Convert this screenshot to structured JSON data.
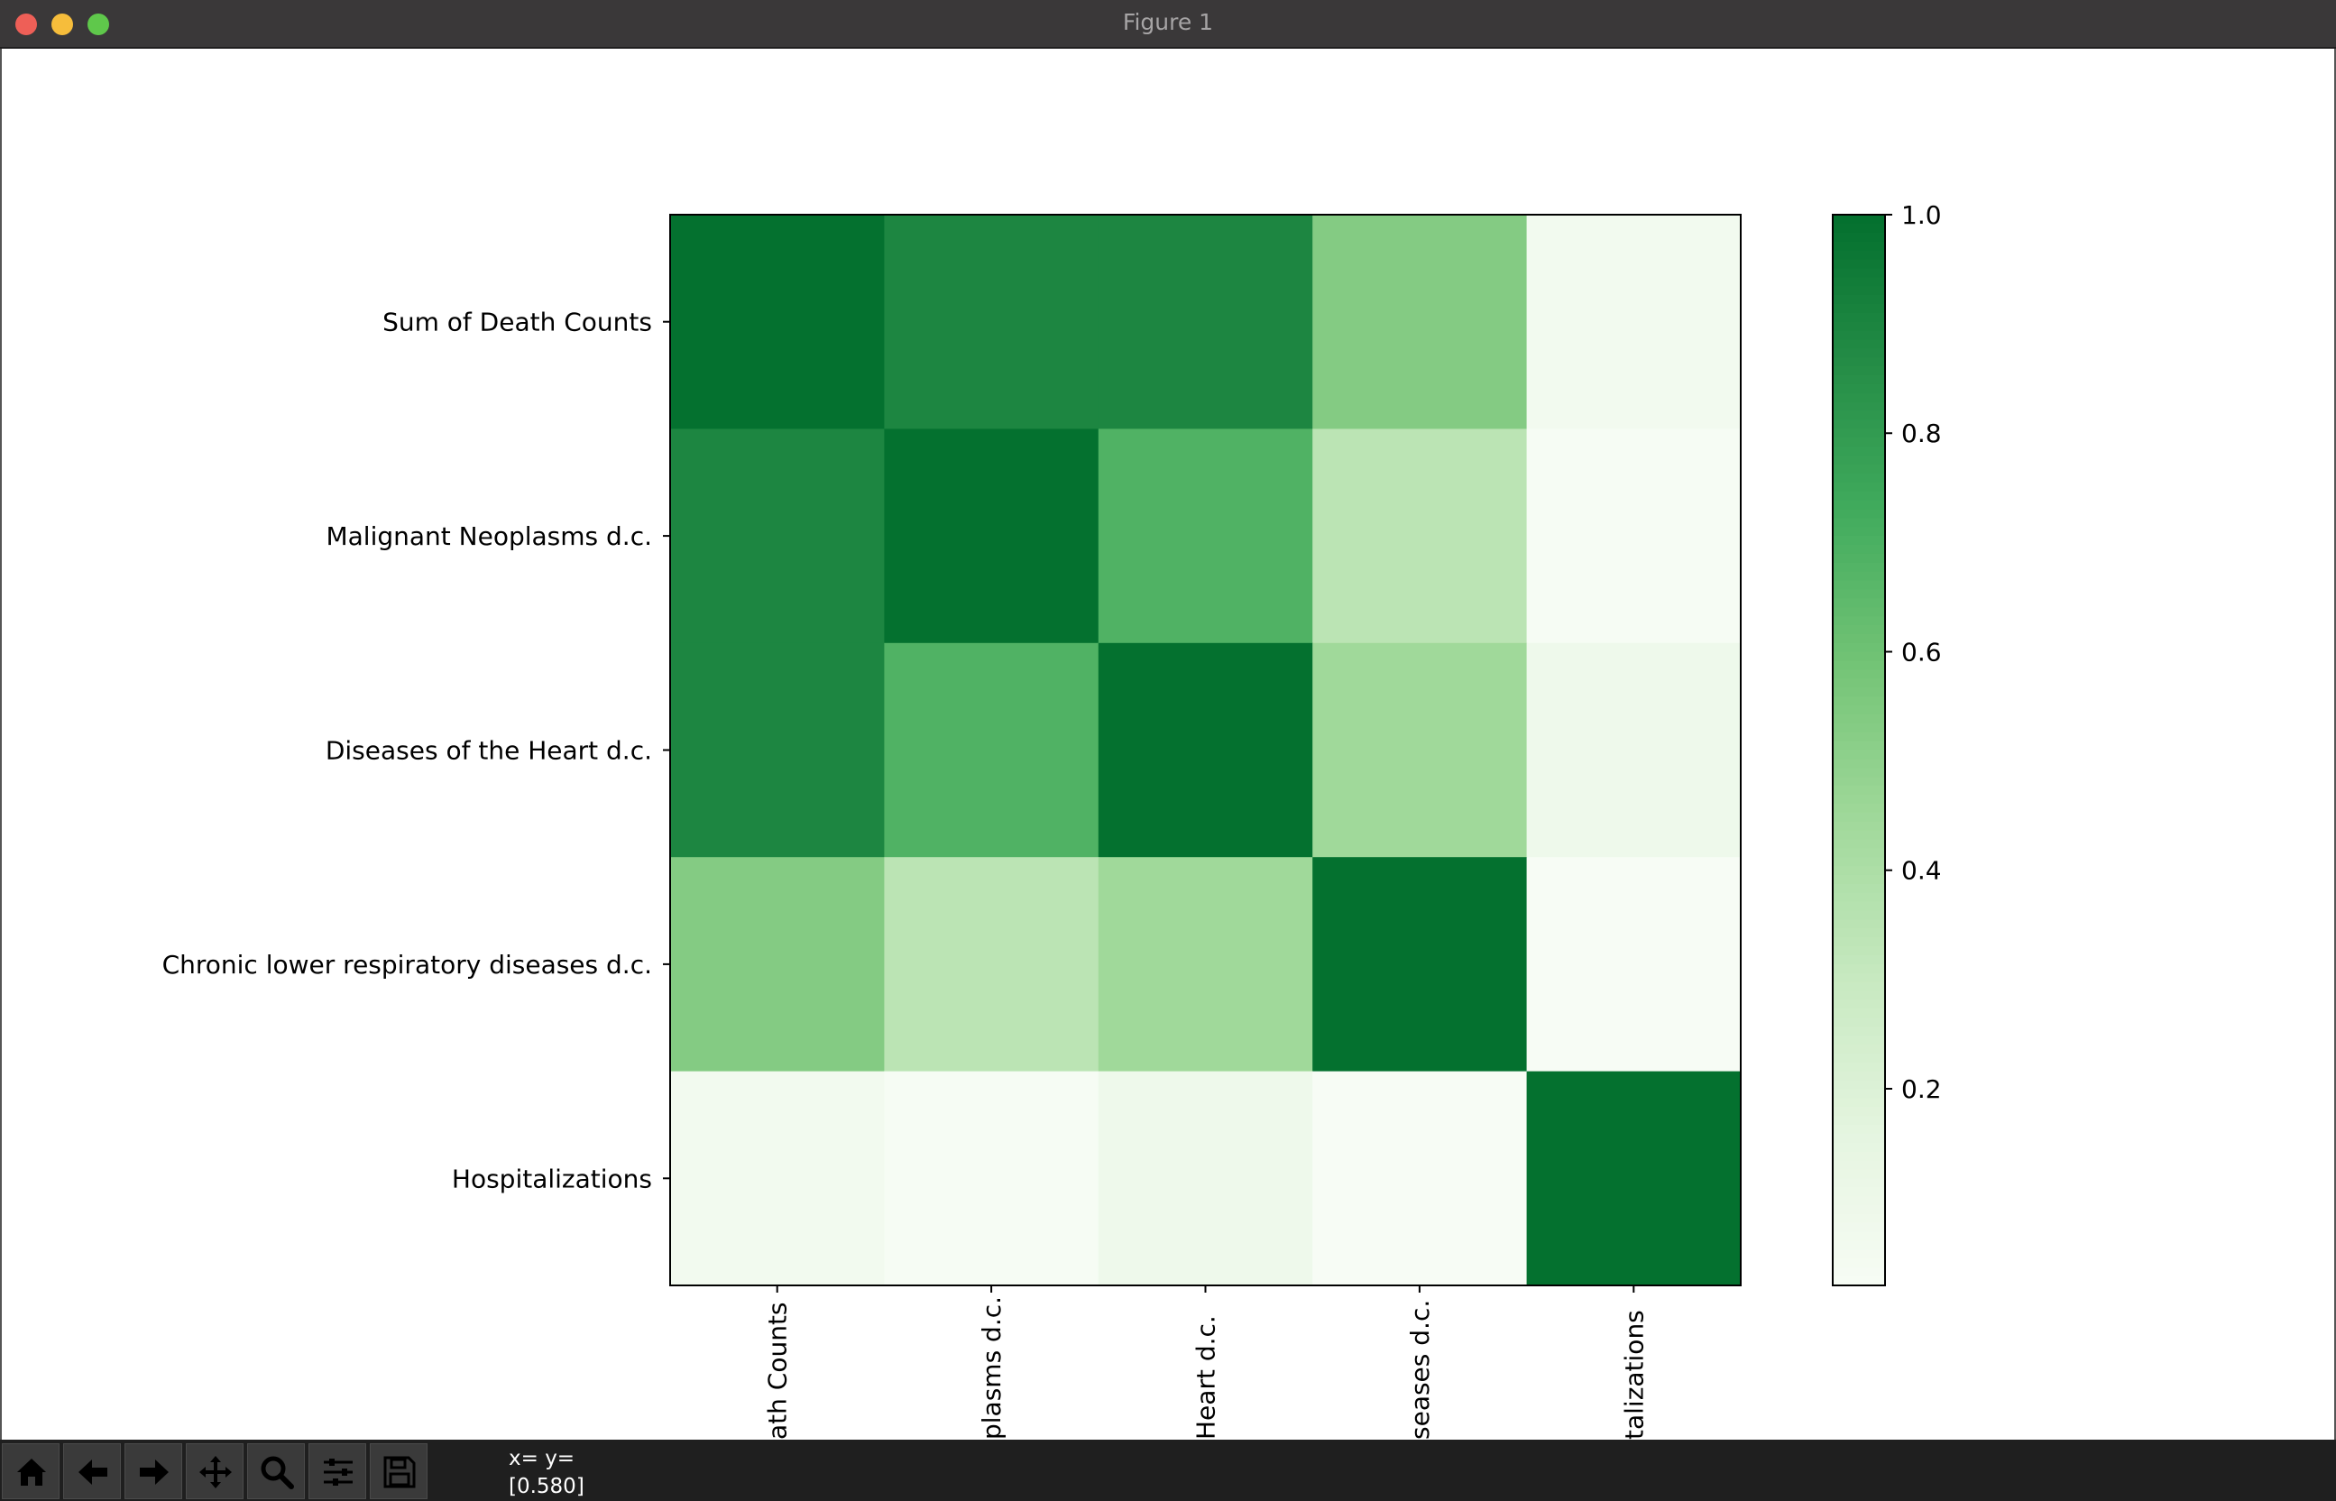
{
  "window": {
    "title": "Figure 1"
  },
  "toolbar": {
    "buttons": [
      {
        "name": "home-button",
        "icon": "home-icon"
      },
      {
        "name": "back-button",
        "icon": "arrow-left-icon"
      },
      {
        "name": "forward-button",
        "icon": "arrow-right-icon"
      },
      {
        "name": "pan-button",
        "icon": "move-icon"
      },
      {
        "name": "zoom-button",
        "icon": "magnifier-icon"
      },
      {
        "name": "configure-subplots-button",
        "icon": "sliders-icon"
      },
      {
        "name": "save-button",
        "icon": "floppy-disk-icon"
      }
    ],
    "coords_line1": "x= y=",
    "coords_line2": "[0.580]"
  },
  "chart_data": {
    "type": "heatmap",
    "title": "",
    "row_labels": [
      "Sum of Death Counts",
      "Malignant Neoplasms d.c.",
      "Diseases of the Heart d.c.",
      "Chronic lower respiratory diseases d.c.",
      "Hospitalizations"
    ],
    "column_labels_visible": [
      "ath Counts",
      "plasms d.c.",
      " Heart d.c.",
      "seases d.c.",
      "talizations"
    ],
    "matrix": [
      [
        1.0,
        0.9,
        0.9,
        0.54,
        0.06
      ],
      [
        0.9,
        1.0,
        0.69,
        0.35,
        0.03
      ],
      [
        0.9,
        0.69,
        1.0,
        0.45,
        0.09
      ],
      [
        0.54,
        0.35,
        0.45,
        1.0,
        0.02
      ],
      [
        0.06,
        0.03,
        0.09,
        0.02,
        1.0
      ]
    ],
    "colormap": "Greens",
    "colorbar": {
      "ticks": [
        0.2,
        0.4,
        0.6,
        0.8,
        1.0
      ],
      "tick_labels": [
        "0.2",
        "0.4",
        "0.6",
        "0.8",
        "1.0"
      ],
      "range": [
        0.02,
        1.0
      ]
    }
  }
}
